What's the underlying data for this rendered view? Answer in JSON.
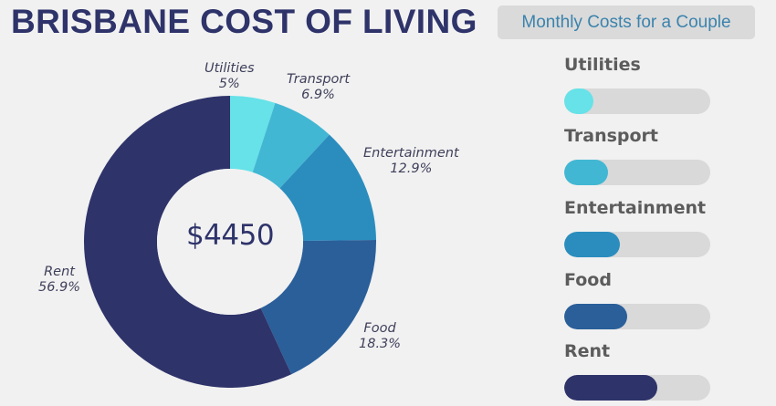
{
  "header": {
    "title": "BRISBANE COST OF LIVING",
    "subtitle": "Monthly Costs for a Couple"
  },
  "donut": {
    "center_total": "$4450"
  },
  "bars_panel": {
    "items": [
      {
        "label": "Utilities",
        "fill_pct": 20,
        "color": "#66e2e8"
      },
      {
        "label": "Transport",
        "fill_pct": 30,
        "color": "#42b7d3"
      },
      {
        "label": "Entertainment",
        "fill_pct": 38,
        "color": "#2b8dbe"
      },
      {
        "label": "Food",
        "fill_pct": 43,
        "color": "#2a5f9a"
      },
      {
        "label": "Rent",
        "fill_pct": 64,
        "color": "#2e336a"
      }
    ]
  },
  "colors": {
    "background": "#f1f1f1",
    "title": "#2e336a",
    "subtitle_text": "#3b83ad",
    "subtitle_bg": "#dadada",
    "track": "#d9d9d9"
  },
  "chart_data": {
    "type": "pie",
    "variant": "donut",
    "title": "BRISBANE COST OF LIVING",
    "subtitle": "Monthly Costs for a Couple",
    "center_label": "$4450",
    "total": 4450,
    "categories": [
      "Utilities",
      "Transport",
      "Entertainment",
      "Food",
      "Rent"
    ],
    "values": [
      5,
      6.9,
      12.9,
      18.3,
      56.9
    ],
    "value_labels": [
      "5%",
      "6.9%",
      "12.9%",
      "18.3%",
      "56.9%"
    ],
    "unit": "%",
    "colors": [
      "#66e2e8",
      "#42b7d3",
      "#2b8dbe",
      "#2a5f9a",
      "#2e336a"
    ],
    "start_angle": "12 o'clock, clockwise",
    "legend": "none (direct labels); companion bar list on right"
  }
}
